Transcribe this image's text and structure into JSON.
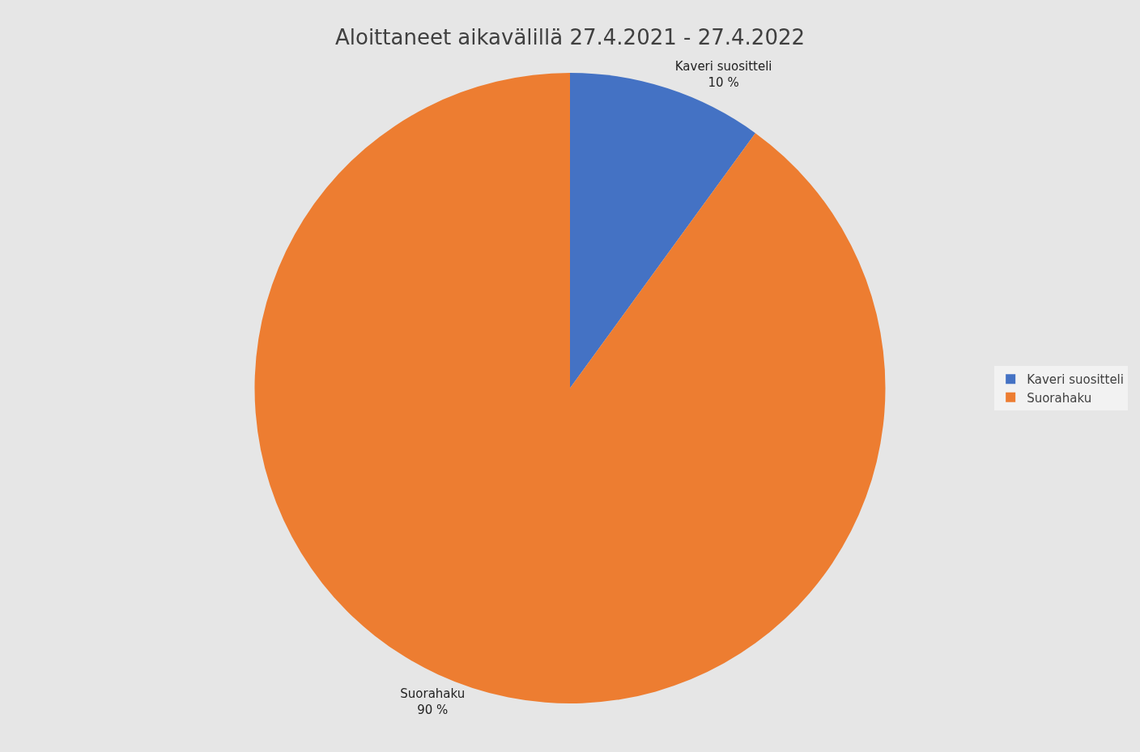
{
  "chart_data": {
    "type": "pie",
    "title": "Aloittaneet aikavälillä 27.4.2021 - 27.4.2022",
    "categories": [
      "Kaveri suositteli",
      "Suorahaku"
    ],
    "values": [
      10,
      90
    ],
    "value_labels": [
      "10 %",
      "90 %"
    ],
    "colors": [
      "#4472c4",
      "#ed7d31"
    ],
    "legend": "right"
  }
}
